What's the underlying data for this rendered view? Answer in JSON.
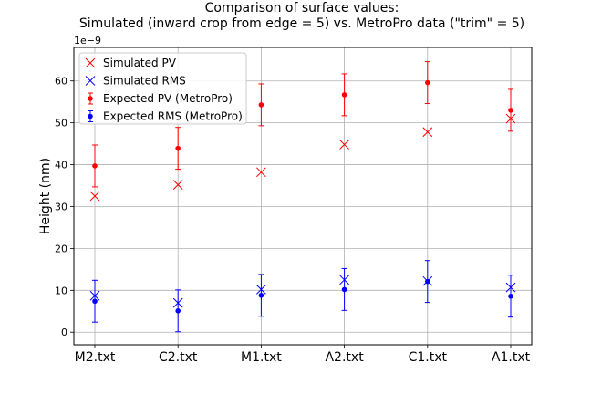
{
  "chart_data": {
    "type": "scatter",
    "title_lines": [
      "Comparison of surface values:",
      "Simulated (inward crop from edge = 5) vs. MetroPro data (\"trim\" = 5)"
    ],
    "xlabel": "",
    "ylabel": "Height (nm)",
    "offset_text": "1e−9",
    "categories": [
      "M2.txt",
      "C2.txt",
      "M1.txt",
      "A2.txt",
      "C1.txt",
      "A1.txt"
    ],
    "ylim": [
      -3,
      68
    ],
    "yticks": [
      0,
      10,
      20,
      30,
      40,
      50,
      60
    ],
    "grid": true,
    "legend_position": "top-left",
    "series": [
      {
        "name": "Simulated PV",
        "marker": "x",
        "color": "#ff0000",
        "values": [
          32.5,
          35.2,
          38.2,
          44.8,
          47.8,
          51.0
        ]
      },
      {
        "name": "Simulated RMS",
        "marker": "x",
        "color": "#0000ff",
        "values": [
          8.7,
          7.0,
          10.2,
          12.5,
          12.2,
          10.7
        ]
      },
      {
        "name": "Expected PV (MetroPro)",
        "marker": "o-errorbar",
        "color": "#ff0000",
        "values": [
          39.7,
          43.9,
          54.3,
          56.7,
          59.6,
          53.0
        ],
        "error": [
          5.0,
          5.0,
          5.0,
          5.0,
          5.0,
          5.0
        ]
      },
      {
        "name": "Expected RMS (MetroPro)",
        "marker": "o-errorbar",
        "color": "#0000ff",
        "values": [
          7.4,
          5.1,
          8.8,
          10.2,
          12.1,
          8.6
        ],
        "error": [
          5.0,
          5.0,
          5.0,
          5.0,
          5.0,
          5.0
        ]
      }
    ]
  }
}
